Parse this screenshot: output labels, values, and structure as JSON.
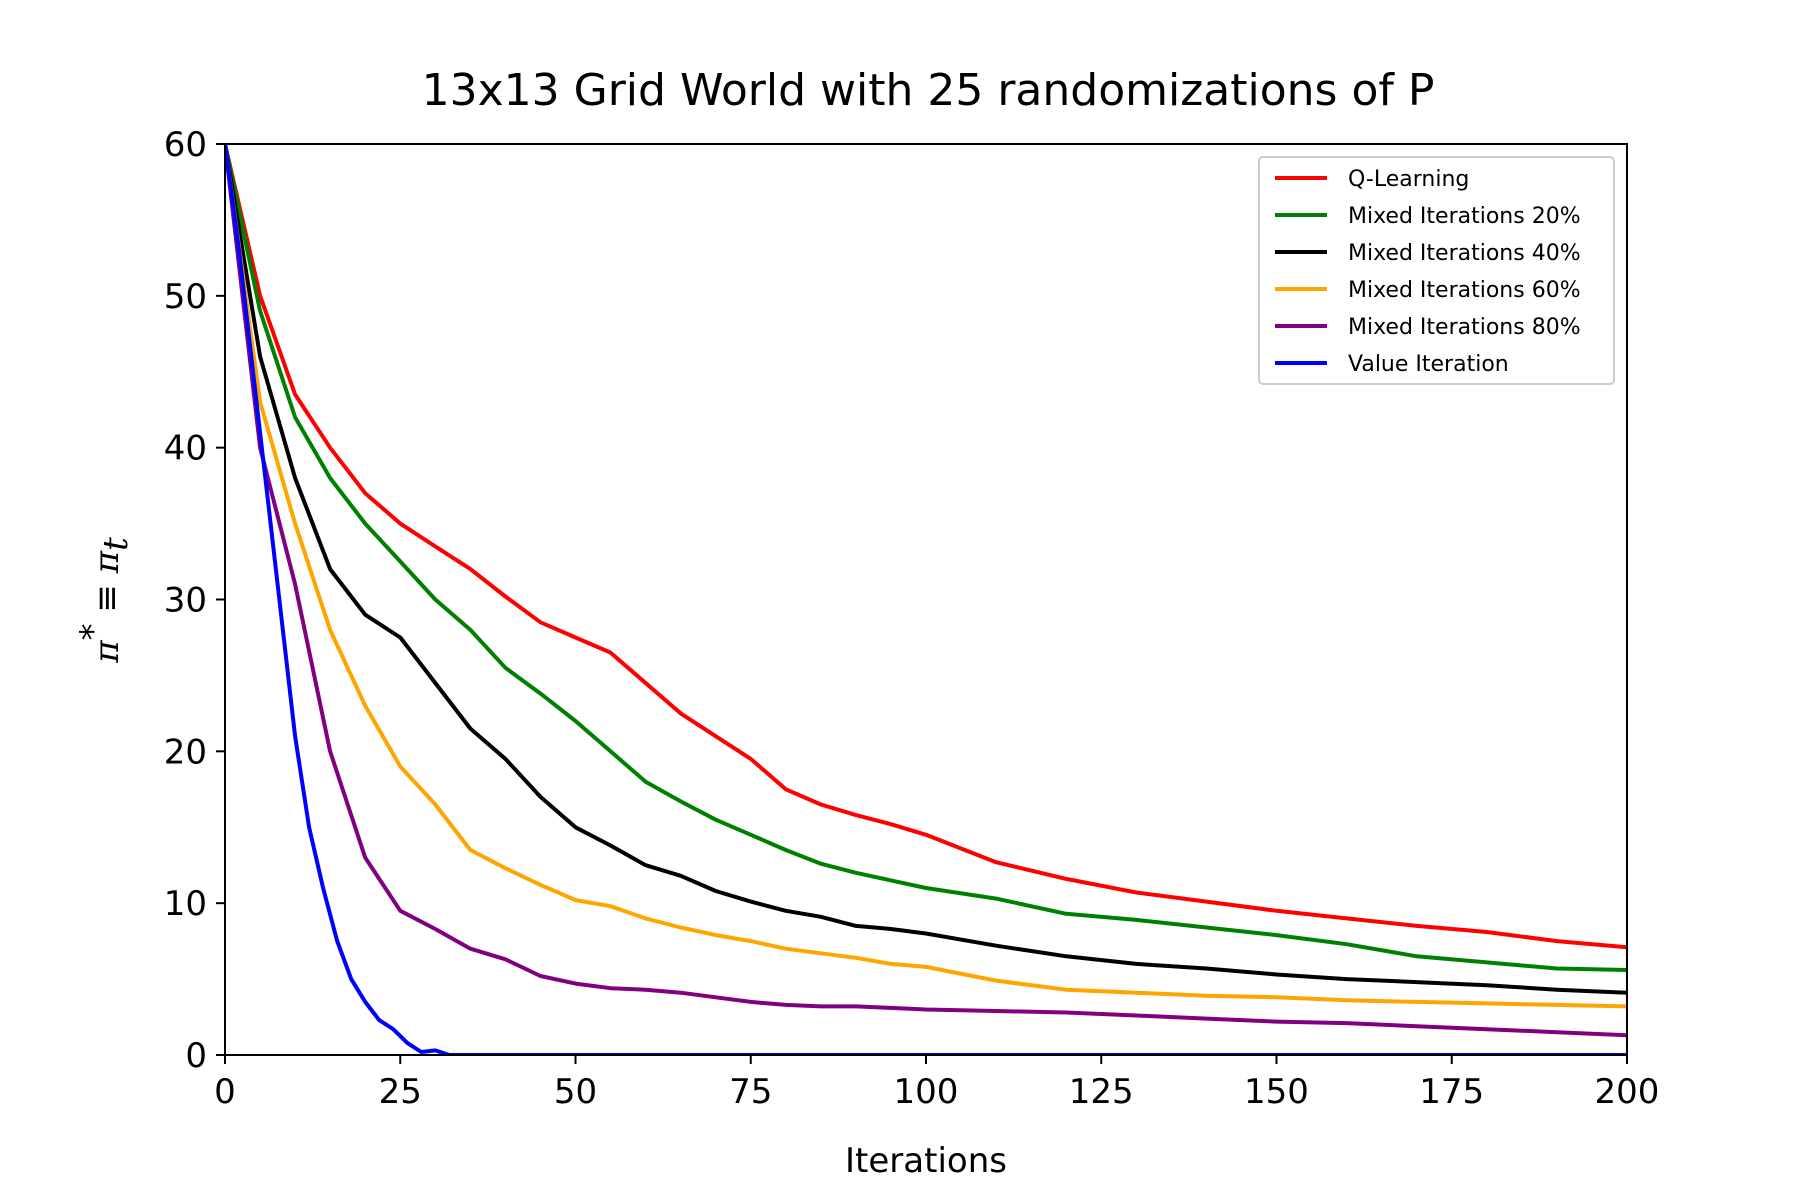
{
  "chart_data": {
    "type": "line",
    "title": "13x13 Grid World with 25 randomizations of P",
    "xlabel": "Iterations",
    "ylabel": {
      "main": "π",
      "sup": "*",
      "rel": " ≡ ",
      "main2": "π",
      "sub": "t"
    },
    "xlim": [
      0,
      200
    ],
    "ylim": [
      0,
      60
    ],
    "xticks": [
      0,
      25,
      50,
      75,
      100,
      125,
      150,
      175,
      200
    ],
    "yticks": [
      0,
      10,
      20,
      30,
      40,
      50,
      60
    ],
    "grid": false,
    "legend_position": "top-right",
    "series": [
      {
        "name": "Q-Learning",
        "color": "#ff0000",
        "x": [
          0,
          5,
          10,
          15,
          20,
          25,
          30,
          35,
          40,
          45,
          50,
          55,
          60,
          65,
          70,
          75,
          80,
          85,
          90,
          95,
          100,
          110,
          120,
          130,
          140,
          150,
          160,
          170,
          180,
          190,
          200
        ],
        "y": [
          60,
          50,
          43.5,
          40,
          37,
          35,
          33.5,
          32,
          30.2,
          28.5,
          27.5,
          26.5,
          24.5,
          22.5,
          21,
          19.5,
          17.5,
          16.5,
          15.8,
          15.2,
          14.5,
          12.7,
          11.6,
          10.7,
          10.1,
          9.5,
          9.0,
          8.5,
          8.1,
          7.5,
          7.1
        ]
      },
      {
        "name": "Mixed Iterations 20%",
        "color": "#008000",
        "x": [
          0,
          5,
          10,
          15,
          20,
          25,
          30,
          35,
          40,
          45,
          50,
          55,
          60,
          65,
          70,
          75,
          80,
          85,
          90,
          95,
          100,
          110,
          120,
          130,
          140,
          150,
          160,
          170,
          180,
          190,
          200
        ],
        "y": [
          60,
          49,
          42,
          38,
          35,
          32.5,
          30,
          28,
          25.5,
          23.8,
          22,
          20,
          18,
          16.7,
          15.5,
          14.5,
          13.5,
          12.6,
          12,
          11.5,
          11,
          10.3,
          9.3,
          8.9,
          8.4,
          7.9,
          7.3,
          6.5,
          6.1,
          5.7,
          5.6
        ]
      },
      {
        "name": "Mixed Iterations 40%",
        "color": "#000000",
        "x": [
          0,
          5,
          10,
          15,
          20,
          25,
          30,
          35,
          40,
          45,
          50,
          55,
          60,
          65,
          70,
          75,
          80,
          85,
          90,
          95,
          100,
          110,
          120,
          130,
          140,
          150,
          160,
          170,
          180,
          190,
          200
        ],
        "y": [
          60,
          46,
          38,
          32,
          29,
          27.5,
          24.5,
          21.5,
          19.5,
          17,
          15,
          13.8,
          12.5,
          11.8,
          10.8,
          10.1,
          9.5,
          9.1,
          8.5,
          8.3,
          8.0,
          7.2,
          6.5,
          6.0,
          5.7,
          5.3,
          5.0,
          4.8,
          4.6,
          4.3,
          4.1
        ]
      },
      {
        "name": "Mixed Iterations 60%",
        "color": "#ffa500",
        "x": [
          0,
          5,
          10,
          15,
          20,
          25,
          30,
          35,
          40,
          45,
          50,
          55,
          60,
          65,
          70,
          75,
          80,
          85,
          90,
          95,
          100,
          110,
          120,
          130,
          140,
          150,
          160,
          170,
          180,
          190,
          200
        ],
        "y": [
          60,
          43,
          35,
          28,
          23,
          19,
          16.5,
          13.5,
          12.3,
          11.2,
          10.2,
          9.8,
          9,
          8.4,
          7.9,
          7.5,
          7.0,
          6.7,
          6.4,
          6.0,
          5.8,
          4.9,
          4.3,
          4.1,
          3.9,
          3.8,
          3.6,
          3.5,
          3.4,
          3.3,
          3.2
        ]
      },
      {
        "name": "Mixed Iterations 80%",
        "color": "#800080",
        "x": [
          0,
          5,
          10,
          15,
          20,
          25,
          30,
          35,
          40,
          45,
          50,
          55,
          60,
          65,
          70,
          75,
          80,
          85,
          90,
          95,
          100,
          110,
          120,
          130,
          140,
          150,
          160,
          170,
          180,
          190,
          200
        ],
        "y": [
          60,
          40,
          31,
          20,
          13,
          9.5,
          8.3,
          7.0,
          6.3,
          5.2,
          4.7,
          4.4,
          4.3,
          4.1,
          3.8,
          3.5,
          3.3,
          3.2,
          3.2,
          3.1,
          3.0,
          2.9,
          2.8,
          2.6,
          2.4,
          2.2,
          2.1,
          1.9,
          1.7,
          1.5,
          1.3
        ]
      },
      {
        "name": "Value Iteration",
        "color": "#0000ff",
        "x": [
          0,
          2,
          4,
          6,
          8,
          10,
          12,
          14,
          16,
          18,
          20,
          22,
          24,
          26,
          28,
          30,
          32,
          200
        ],
        "y": [
          60,
          53,
          45,
          37,
          29,
          21,
          15,
          11,
          7.5,
          5,
          3.5,
          2.3,
          1.7,
          0.8,
          0.2,
          0.3,
          0,
          0
        ]
      }
    ]
  }
}
